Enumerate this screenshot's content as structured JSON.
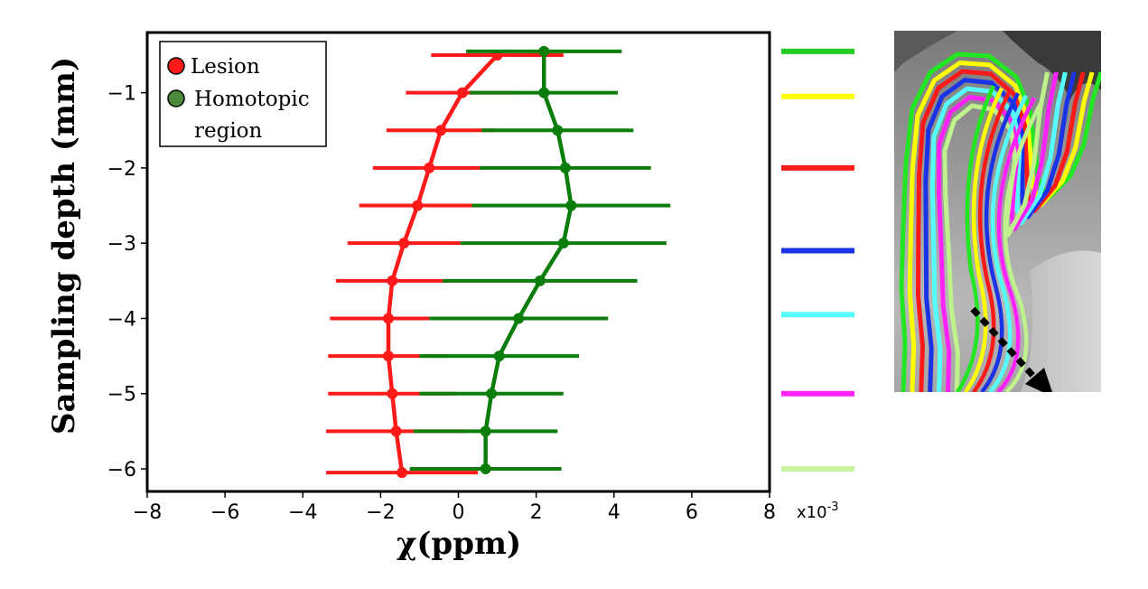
{
  "chart_data": {
    "type": "line",
    "xlabel": "χ(ppm)",
    "ylabel": "Sampling  depth (mm)",
    "x_scale_label": "x10",
    "x_scale_exponent": "-3",
    "xlim": [
      -8,
      8
    ],
    "ylim": [
      -6.3,
      -0.2
    ],
    "xticks": [
      -8,
      -6,
      -4,
      -2,
      0,
      2,
      4,
      6,
      8
    ],
    "yticks": [
      -1,
      -2,
      -3,
      -4,
      -5,
      -6
    ],
    "xtick_labels": [
      "−8",
      "−6",
      "−4",
      "−2",
      "0",
      "2",
      "4",
      "6",
      "8"
    ],
    "ytick_labels": [
      "−1",
      "−2",
      "−3",
      "−4",
      "−5",
      "−6"
    ],
    "legend_position": "top-left",
    "series": [
      {
        "name": "Lesion",
        "color": "#ff1a1a",
        "points": [
          {
            "y": -0.5,
            "x": 1.0,
            "xerr": 1.7
          },
          {
            "y": -1.0,
            "x": 0.1,
            "xerr": 1.45
          },
          {
            "y": -1.5,
            "x": -0.45,
            "xerr": 1.4
          },
          {
            "y": -2.0,
            "x": -0.75,
            "xerr": 1.45
          },
          {
            "y": -2.5,
            "x": -1.05,
            "xerr": 1.5
          },
          {
            "y": -3.0,
            "x": -1.4,
            "xerr": 1.45
          },
          {
            "y": -3.5,
            "x": -1.7,
            "xerr": 1.45
          },
          {
            "y": -4.0,
            "x": -1.8,
            "xerr": 1.5
          },
          {
            "y": -4.5,
            "x": -1.8,
            "xerr": 1.55
          },
          {
            "y": -5.0,
            "x": -1.7,
            "xerr": 1.65
          },
          {
            "y": -5.5,
            "x": -1.6,
            "xerr": 1.8
          },
          {
            "y": -6.05,
            "x": -1.45,
            "xerr": 1.95
          }
        ]
      },
      {
        "name": "Homotopic region",
        "legend_lines": [
          "Homotopic",
          "region"
        ],
        "color": "#0a7d0a",
        "points": [
          {
            "y": -0.45,
            "x": 2.2,
            "xerr": 2.0
          },
          {
            "y": -1.0,
            "x": 2.2,
            "xerr": 1.9
          },
          {
            "y": -1.5,
            "x": 2.55,
            "xerr": 1.95
          },
          {
            "y": -2.0,
            "x": 2.75,
            "xerr": 2.2
          },
          {
            "y": -2.5,
            "x": 2.9,
            "xerr": 2.55
          },
          {
            "y": -3.0,
            "x": 2.7,
            "xerr": 2.65
          },
          {
            "y": -3.5,
            "x": 2.1,
            "xerr": 2.5
          },
          {
            "y": -4.0,
            "x": 1.55,
            "xerr": 2.3
          },
          {
            "y": -4.5,
            "x": 1.05,
            "xerr": 2.05
          },
          {
            "y": -5.0,
            "x": 0.85,
            "xerr": 1.85
          },
          {
            "y": -5.5,
            "x": 0.7,
            "xerr": 1.85
          },
          {
            "y": -6.0,
            "x": 0.7,
            "xerr": 1.95
          }
        ]
      }
    ]
  },
  "color_key": [
    {
      "color": "#22cc22",
      "depth": -0.45
    },
    {
      "color": "#ffff00",
      "depth": -1.05
    },
    {
      "color": "#ff1a1a",
      "depth": -2.0
    },
    {
      "color": "#1a33e6",
      "depth": -3.1
    },
    {
      "color": "#55ffff",
      "depth": -3.95
    },
    {
      "color": "#ff22ff",
      "depth": -5.0
    },
    {
      "color": "#c8f59a",
      "depth": -6.0
    }
  ],
  "brain_image": {
    "contour_colors": [
      "#22e622",
      "#ffff00",
      "#ff1a1a",
      "#1a33e6",
      "#55ffff",
      "#ff22ff",
      "#bff28c"
    ],
    "arrow_color": "#000000"
  }
}
